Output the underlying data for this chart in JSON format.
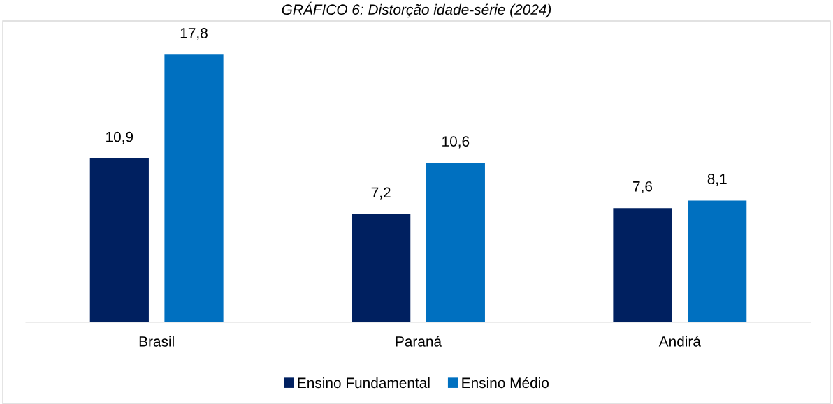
{
  "chart_data": {
    "type": "bar",
    "title": "GRÁFICO 6: Distorção idade-série (2024)",
    "categories": [
      "Brasil",
      "Paraná",
      "Andirá"
    ],
    "series": [
      {
        "name": "Ensino Fundamental",
        "color": "#002060",
        "values": [
          10.9,
          7.2,
          7.6
        ],
        "value_labels": [
          "10,9",
          "7,2",
          "7,6"
        ]
      },
      {
        "name": "Ensino Médio",
        "color": "#0070c0",
        "values": [
          17.8,
          10.6,
          8.1
        ],
        "value_labels": [
          "17,8",
          "10,6",
          "8,1"
        ]
      }
    ],
    "grid": false,
    "legend": "bottom"
  }
}
